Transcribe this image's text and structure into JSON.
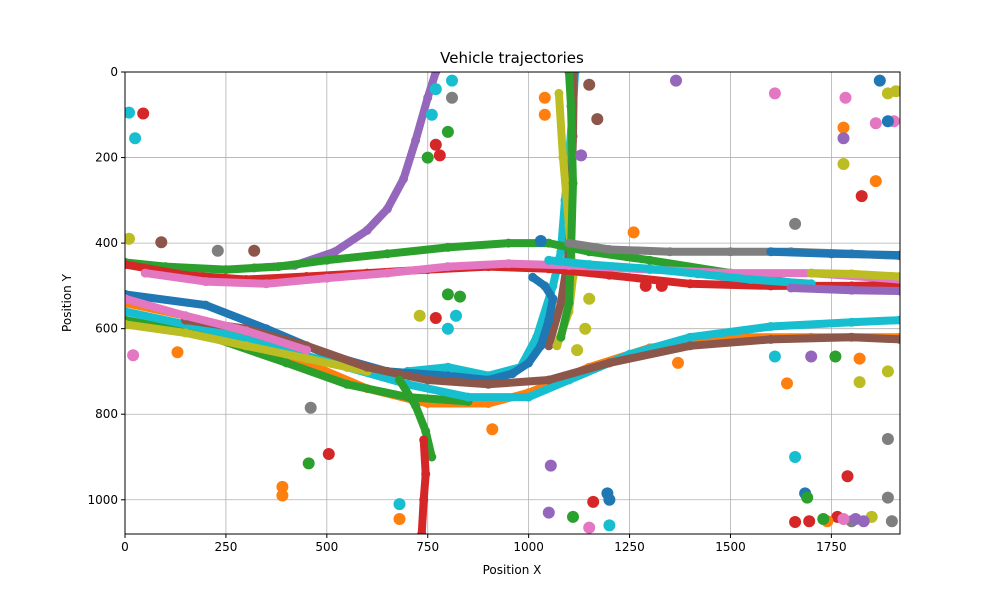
{
  "chart_data": {
    "type": "scatter",
    "title": "Vehicle trajectories",
    "xlabel": "Position X",
    "ylabel": "Position Y",
    "xlim": [
      0,
      1920
    ],
    "ylim": [
      1080,
      0
    ],
    "y_axis_inverted": true,
    "grid": true,
    "x_ticks": [
      0,
      250,
      500,
      750,
      1000,
      1250,
      1500,
      1750
    ],
    "y_ticks": [
      0,
      200,
      400,
      600,
      800,
      1000
    ],
    "colors": [
      "#1f77b4",
      "#ff7f0e",
      "#2ca02c",
      "#d62728",
      "#9467bd",
      "#8c564b",
      "#e377c2",
      "#7f7f7f",
      "#bcbd22",
      "#17becf"
    ],
    "series": [
      {
        "color": "#9467bd",
        "points": [
          [
            320,
            458
          ],
          [
            420,
            452
          ],
          [
            520,
            420
          ],
          [
            600,
            370
          ],
          [
            650,
            320
          ],
          [
            690,
            250
          ],
          [
            720,
            160
          ],
          [
            750,
            60
          ],
          [
            770,
            0
          ]
        ]
      },
      {
        "color": "#17becf",
        "points": [
          [
            700,
            700
          ],
          [
            800,
            690
          ],
          [
            900,
            710
          ],
          [
            980,
            690
          ],
          [
            1020,
            620
          ],
          [
            1060,
            500
          ],
          [
            1080,
            420
          ],
          [
            1090,
            300
          ],
          [
            1100,
            200
          ],
          [
            1110,
            80
          ],
          [
            1115,
            0
          ]
        ]
      },
      {
        "color": "#8c564b",
        "points": [
          [
            1050,
            640
          ],
          [
            1080,
            540
          ],
          [
            1100,
            420
          ],
          [
            1105,
            300
          ],
          [
            1110,
            150
          ],
          [
            1112,
            0
          ]
        ]
      },
      {
        "color": "#bcbd22",
        "points": [
          [
            1070,
            640
          ],
          [
            1100,
            560
          ],
          [
            1110,
            480
          ],
          [
            1100,
            360
          ],
          [
            1085,
            200
          ],
          [
            1075,
            50
          ]
        ]
      },
      {
        "color": "#2ca02c",
        "points": [
          [
            1080,
            620
          ],
          [
            1100,
            540
          ],
          [
            1105,
            420
          ],
          [
            1110,
            260
          ],
          [
            1105,
            80
          ],
          [
            1100,
            0
          ]
        ]
      },
      {
        "color": "#2ca02c",
        "points": [
          [
            0,
            445
          ],
          [
            100,
            455
          ],
          [
            250,
            462
          ],
          [
            380,
            455
          ],
          [
            500,
            440
          ],
          [
            650,
            425
          ],
          [
            800,
            410
          ],
          [
            950,
            400
          ],
          [
            1050,
            400
          ],
          [
            1150,
            420
          ],
          [
            1300,
            440
          ],
          [
            1500,
            470
          ],
          [
            1700,
            500
          ],
          [
            1920,
            510
          ]
        ]
      },
      {
        "color": "#d62728",
        "points": [
          [
            0,
            450
          ],
          [
            150,
            475
          ],
          [
            300,
            485
          ],
          [
            450,
            478
          ],
          [
            600,
            470
          ],
          [
            750,
            462
          ],
          [
            900,
            455
          ],
          [
            1050,
            460
          ],
          [
            1200,
            475
          ],
          [
            1400,
            495
          ],
          [
            1600,
            500
          ],
          [
            1800,
            500
          ],
          [
            1920,
            498
          ]
        ]
      },
      {
        "color": "#e377c2",
        "points": [
          [
            50,
            470
          ],
          [
            200,
            490
          ],
          [
            350,
            495
          ],
          [
            500,
            482
          ],
          [
            650,
            470
          ],
          [
            800,
            455
          ],
          [
            950,
            448
          ],
          [
            1100,
            452
          ],
          [
            1300,
            462
          ],
          [
            1500,
            470
          ],
          [
            1700,
            470
          ],
          [
            1920,
            485
          ]
        ]
      },
      {
        "color": "#7f7f7f",
        "points": [
          [
            1100,
            400
          ],
          [
            1200,
            415
          ],
          [
            1350,
            420
          ],
          [
            1500,
            420
          ],
          [
            1650,
            420
          ],
          [
            1800,
            425
          ],
          [
            1920,
            430
          ]
        ]
      },
      {
        "color": "#1f77b4",
        "points": [
          [
            1600,
            420
          ],
          [
            1750,
            425
          ],
          [
            1920,
            428
          ]
        ]
      },
      {
        "color": "#17becf",
        "points": [
          [
            1050,
            440
          ],
          [
            1150,
            450
          ],
          [
            1300,
            460
          ],
          [
            1420,
            472
          ],
          [
            1550,
            485
          ],
          [
            1700,
            495
          ]
        ]
      },
      {
        "color": "#9467bd",
        "points": [
          [
            1650,
            505
          ],
          [
            1800,
            510
          ],
          [
            1920,
            512
          ]
        ]
      },
      {
        "color": "#bcbd22",
        "points": [
          [
            1700,
            470
          ],
          [
            1800,
            472
          ],
          [
            1920,
            478
          ]
        ]
      },
      {
        "color": "#1f77b4",
        "points": [
          [
            0,
            520
          ],
          [
            200,
            545
          ],
          [
            350,
            600
          ],
          [
            500,
            660
          ],
          [
            650,
            700
          ],
          [
            800,
            710
          ],
          [
            900,
            720
          ],
          [
            960,
            705
          ],
          [
            1000,
            680
          ],
          [
            1030,
            640
          ],
          [
            1050,
            580
          ],
          [
            1060,
            530
          ],
          [
            1040,
            500
          ],
          [
            1010,
            480
          ]
        ]
      },
      {
        "color": "#ff7f0e",
        "points": [
          [
            0,
            540
          ],
          [
            150,
            570
          ],
          [
            300,
            620
          ],
          [
            450,
            680
          ],
          [
            600,
            740
          ],
          [
            750,
            775
          ],
          [
            900,
            775
          ],
          [
            1000,
            750
          ],
          [
            1150,
            690
          ],
          [
            1300,
            645
          ],
          [
            1500,
            620
          ],
          [
            1700,
            620
          ],
          [
            1920,
            620
          ]
        ]
      },
      {
        "color": "#2ca02c",
        "points": [
          [
            0,
            580
          ],
          [
            200,
            615
          ],
          [
            400,
            680
          ],
          [
            550,
            730
          ],
          [
            700,
            760
          ],
          [
            850,
            770
          ]
        ]
      },
      {
        "color": "#17becf",
        "points": [
          [
            0,
            560
          ],
          [
            200,
            600
          ],
          [
            400,
            650
          ],
          [
            550,
            690
          ],
          [
            700,
            730
          ],
          [
            850,
            760
          ],
          [
            1000,
            760
          ],
          [
            1100,
            720
          ],
          [
            1250,
            660
          ],
          [
            1400,
            620
          ],
          [
            1600,
            595
          ],
          [
            1800,
            585
          ],
          [
            1920,
            580
          ]
        ]
      },
      {
        "color": "#bcbd22",
        "points": [
          [
            0,
            590
          ],
          [
            150,
            610
          ],
          [
            300,
            640
          ],
          [
            450,
            670
          ],
          [
            600,
            700
          ]
        ]
      },
      {
        "color": "#8c564b",
        "points": [
          [
            150,
            580
          ],
          [
            300,
            600
          ],
          [
            450,
            640
          ],
          [
            600,
            690
          ],
          [
            750,
            720
          ],
          [
            900,
            730
          ],
          [
            1050,
            720
          ],
          [
            1200,
            680
          ],
          [
            1400,
            640
          ],
          [
            1600,
            625
          ],
          [
            1800,
            620
          ],
          [
            1920,
            625
          ]
        ]
      },
      {
        "color": "#e377c2",
        "points": [
          [
            0,
            530
          ],
          [
            150,
            570
          ],
          [
            300,
            605
          ],
          [
            450,
            650
          ]
        ]
      },
      {
        "color": "#2ca02c",
        "points": [
          [
            680,
            720
          ],
          [
            720,
            780
          ],
          [
            745,
            840
          ],
          [
            760,
            900
          ]
        ]
      },
      {
        "color": "#d62728",
        "points": [
          [
            740,
            860
          ],
          [
            745,
            940
          ],
          [
            740,
            1000
          ],
          [
            735,
            1080
          ]
        ]
      }
    ],
    "clusters": [
      {
        "color": "#17becf",
        "points": [
          [
            10,
            95
          ],
          [
            25,
            155
          ],
          [
            770,
            40
          ],
          [
            760,
            100
          ],
          [
            810,
            20
          ]
        ]
      },
      {
        "color": "#d62728",
        "points": [
          [
            45,
            97
          ],
          [
            770,
            170
          ],
          [
            780,
            195
          ],
          [
            1825,
            290
          ],
          [
            1790,
            945
          ],
          [
            1160,
            1005
          ],
          [
            1695,
            1050
          ],
          [
            505,
            893
          ],
          [
            1660,
            1052
          ],
          [
            1765,
            1040
          ]
        ]
      },
      {
        "color": "#bcbd22",
        "points": [
          [
            10,
            390
          ],
          [
            1890,
            50
          ],
          [
            1890,
            700
          ],
          [
            1780,
            215
          ],
          [
            1820,
            725
          ],
          [
            1850,
            1040
          ],
          [
            1910,
            45
          ]
        ]
      },
      {
        "color": "#8c564b",
        "points": [
          [
            90,
            398
          ],
          [
            320,
            418
          ],
          [
            1150,
            30
          ],
          [
            1170,
            110
          ]
        ]
      },
      {
        "color": "#7f7f7f",
        "points": [
          [
            230,
            418
          ],
          [
            460,
            785
          ],
          [
            810,
            60
          ],
          [
            1660,
            355
          ],
          [
            1890,
            858
          ],
          [
            1890,
            995
          ],
          [
            1900,
            1050
          ],
          [
            1800,
            1050
          ]
        ]
      },
      {
        "color": "#ff7f0e",
        "points": [
          [
            130,
            655
          ],
          [
            390,
            970
          ],
          [
            390,
            990
          ],
          [
            680,
            1045
          ],
          [
            1040,
            60
          ],
          [
            1040,
            100
          ],
          [
            1260,
            375
          ],
          [
            1370,
            680
          ],
          [
            1780,
            130
          ],
          [
            1860,
            255
          ],
          [
            910,
            835
          ],
          [
            1820,
            670
          ],
          [
            1740,
            1050
          ],
          [
            1640,
            728
          ]
        ]
      },
      {
        "color": "#e377c2",
        "points": [
          [
            20,
            662
          ],
          [
            1610,
            50
          ],
          [
            1785,
            60
          ],
          [
            1860,
            120
          ],
          [
            1905,
            115
          ],
          [
            1150,
            1065
          ],
          [
            1780,
            1045
          ]
        ]
      },
      {
        "color": "#9467bd",
        "points": [
          [
            1130,
            195
          ],
          [
            1365,
            20
          ],
          [
            1050,
            1030
          ],
          [
            1055,
            920
          ],
          [
            1700,
            665
          ],
          [
            1780,
            155
          ],
          [
            1830,
            1050
          ],
          [
            1810,
            1045
          ]
        ]
      },
      {
        "color": "#1f77b4",
        "points": [
          [
            1195,
            985
          ],
          [
            1200,
            1000
          ],
          [
            1685,
            985
          ],
          [
            1870,
            20
          ],
          [
            1890,
            115
          ],
          [
            1030,
            395
          ]
        ]
      },
      {
        "color": "#2ca02c",
        "points": [
          [
            455,
            915
          ],
          [
            800,
            140
          ],
          [
            1110,
            1040
          ],
          [
            1690,
            995
          ],
          [
            1760,
            665
          ],
          [
            1730,
            1045
          ]
        ]
      },
      {
        "color": "#17becf",
        "points": [
          [
            680,
            1010
          ],
          [
            820,
            570
          ],
          [
            800,
            600
          ],
          [
            1200,
            1060
          ],
          [
            1610,
            665
          ],
          [
            1660,
            900
          ]
        ]
      },
      {
        "color": "#bcbd22",
        "points": [
          [
            730,
            570
          ],
          [
            1150,
            530
          ],
          [
            1140,
            600
          ],
          [
            1120,
            650
          ]
        ]
      },
      {
        "color": "#d62728",
        "points": [
          [
            770,
            575
          ],
          [
            1330,
            500
          ],
          [
            1290,
            500
          ]
        ]
      },
      {
        "color": "#2ca02c",
        "points": [
          [
            750,
            200
          ],
          [
            800,
            520
          ],
          [
            830,
            525
          ]
        ]
      }
    ]
  }
}
